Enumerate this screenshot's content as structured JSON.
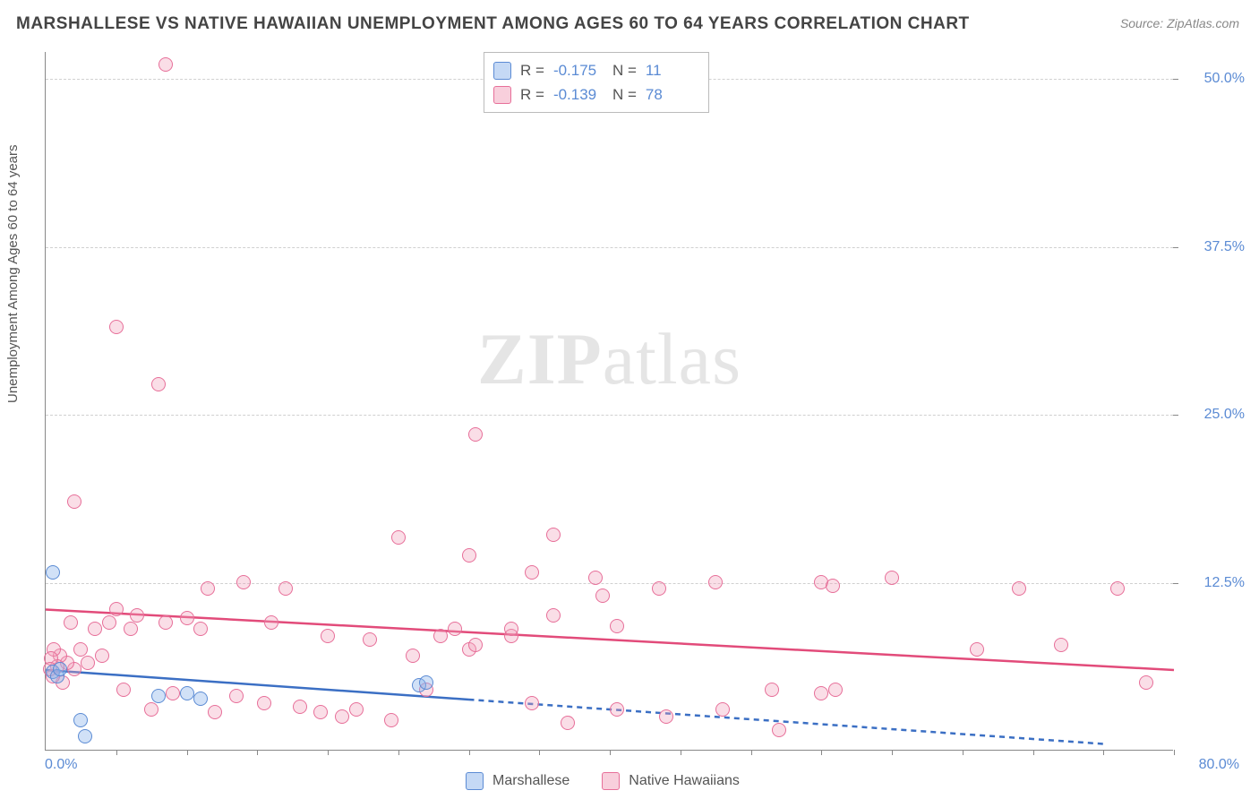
{
  "title": "MARSHALLESE VS NATIVE HAWAIIAN UNEMPLOYMENT AMONG AGES 60 TO 64 YEARS CORRELATION CHART",
  "source": "Source: ZipAtlas.com",
  "watermark": {
    "bold": "ZIP",
    "rest": "atlas"
  },
  "yaxis_label": "Unemployment Among Ages 60 to 64 years",
  "axes": {
    "xmin": 0,
    "xmax": 80,
    "ymin": 0,
    "ymax": 52,
    "origin_label": "0.0%",
    "xmax_label": "80.0%",
    "yticks": [
      {
        "v": 12.5,
        "label": "12.5%"
      },
      {
        "v": 25.0,
        "label": "25.0%"
      },
      {
        "v": 37.5,
        "label": "37.5%"
      },
      {
        "v": 50.0,
        "label": "50.0%"
      }
    ],
    "xtick_step": 5,
    "grid_color": "#d0d0d0",
    "axis_color": "#888888",
    "tick_label_color": "#5b8bd4"
  },
  "series": {
    "blue": {
      "name": "Marshallese",
      "color_fill": "rgba(140,180,235,0.4)",
      "color_stroke": "#5b8bd4",
      "R": "-0.175",
      "N": "11",
      "trend": {
        "x1": 0,
        "y1": 6.0,
        "x2": 30,
        "y2": 3.8,
        "dash_to_x": 75,
        "dash_to_y": 0.5,
        "line_color": "#3b6fc4"
      },
      "points": [
        [
          0.5,
          13.2
        ],
        [
          0.5,
          5.8
        ],
        [
          0.8,
          5.5
        ],
        [
          1.0,
          6.0
        ],
        [
          2.5,
          2.2
        ],
        [
          2.8,
          1.0
        ],
        [
          8.0,
          4.0
        ],
        [
          10.0,
          4.2
        ],
        [
          11.0,
          3.8
        ],
        [
          26.5,
          4.8
        ],
        [
          27.0,
          5.0
        ]
      ]
    },
    "pink": {
      "name": "Native Hawaiians",
      "color_fill": "rgba(241,160,185,0.35)",
      "color_stroke": "#e76f99",
      "R": "-0.139",
      "N": "78",
      "trend": {
        "x1": 0,
        "y1": 10.5,
        "x2": 80,
        "y2": 6.0,
        "line_color": "#e24b7a"
      },
      "points": [
        [
          8.5,
          51.0
        ],
        [
          8.0,
          27.2
        ],
        [
          5.0,
          31.5
        ],
        [
          2.0,
          18.5
        ],
        [
          30.5,
          23.5
        ],
        [
          25.0,
          15.8
        ],
        [
          30.0,
          14.5
        ],
        [
          36.0,
          16.0
        ],
        [
          34.5,
          13.2
        ],
        [
          36.0,
          10.0
        ],
        [
          39.5,
          11.5
        ],
        [
          39.0,
          12.8
        ],
        [
          43.5,
          12.0
        ],
        [
          47.5,
          12.5
        ],
        [
          40.5,
          9.2
        ],
        [
          55.0,
          12.5
        ],
        [
          55.8,
          12.2
        ],
        [
          60.0,
          12.8
        ],
        [
          69.0,
          12.0
        ],
        [
          76.0,
          12.0
        ],
        [
          78.0,
          5.0
        ],
        [
          72.0,
          7.8
        ],
        [
          66.0,
          7.5
        ],
        [
          56.0,
          4.5
        ],
        [
          55.0,
          4.2
        ],
        [
          52.0,
          1.5
        ],
        [
          51.5,
          4.5
        ],
        [
          48.0,
          3.0
        ],
        [
          44.0,
          2.5
        ],
        [
          40.5,
          3.0
        ],
        [
          37.0,
          2.0
        ],
        [
          34.5,
          3.5
        ],
        [
          33.0,
          8.5
        ],
        [
          33.0,
          9.0
        ],
        [
          30.0,
          7.5
        ],
        [
          30.5,
          7.8
        ],
        [
          29.0,
          9.0
        ],
        [
          28.0,
          8.5
        ],
        [
          27.0,
          4.5
        ],
        [
          26.0,
          7.0
        ],
        [
          24.5,
          2.2
        ],
        [
          23.0,
          8.2
        ],
        [
          22.0,
          3.0
        ],
        [
          21.0,
          2.5
        ],
        [
          20.0,
          8.5
        ],
        [
          19.5,
          2.8
        ],
        [
          18.0,
          3.2
        ],
        [
          17.0,
          12.0
        ],
        [
          16.0,
          9.5
        ],
        [
          15.5,
          3.5
        ],
        [
          14.0,
          12.5
        ],
        [
          13.5,
          4.0
        ],
        [
          12.0,
          2.8
        ],
        [
          11.5,
          12.0
        ],
        [
          11.0,
          9.0
        ],
        [
          10.0,
          9.8
        ],
        [
          9.0,
          4.2
        ],
        [
          8.5,
          9.5
        ],
        [
          7.5,
          3.0
        ],
        [
          6.5,
          10.0
        ],
        [
          6.0,
          9.0
        ],
        [
          5.5,
          4.5
        ],
        [
          5.0,
          10.5
        ],
        [
          4.5,
          9.5
        ],
        [
          4.0,
          7.0
        ],
        [
          3.5,
          9.0
        ],
        [
          3.0,
          6.5
        ],
        [
          2.5,
          7.5
        ],
        [
          2.0,
          6.0
        ],
        [
          1.8,
          9.5
        ],
        [
          1.5,
          6.5
        ],
        [
          1.2,
          5.0
        ],
        [
          1.0,
          7.0
        ],
        [
          0.8,
          6.2
        ],
        [
          0.6,
          7.5
        ],
        [
          0.5,
          5.5
        ],
        [
          0.4,
          6.8
        ],
        [
          0.3,
          6.0
        ]
      ]
    }
  },
  "stats_box": {
    "R_label": "R =",
    "N_label": "N ="
  },
  "legend": {
    "items": [
      {
        "key": "blue",
        "label": "Marshallese"
      },
      {
        "key": "pink",
        "label": "Native Hawaiians"
      }
    ]
  },
  "style": {
    "title_color": "#444444",
    "title_fontsize": 19,
    "source_color": "#888888",
    "point_radius": 8,
    "background": "#ffffff"
  }
}
